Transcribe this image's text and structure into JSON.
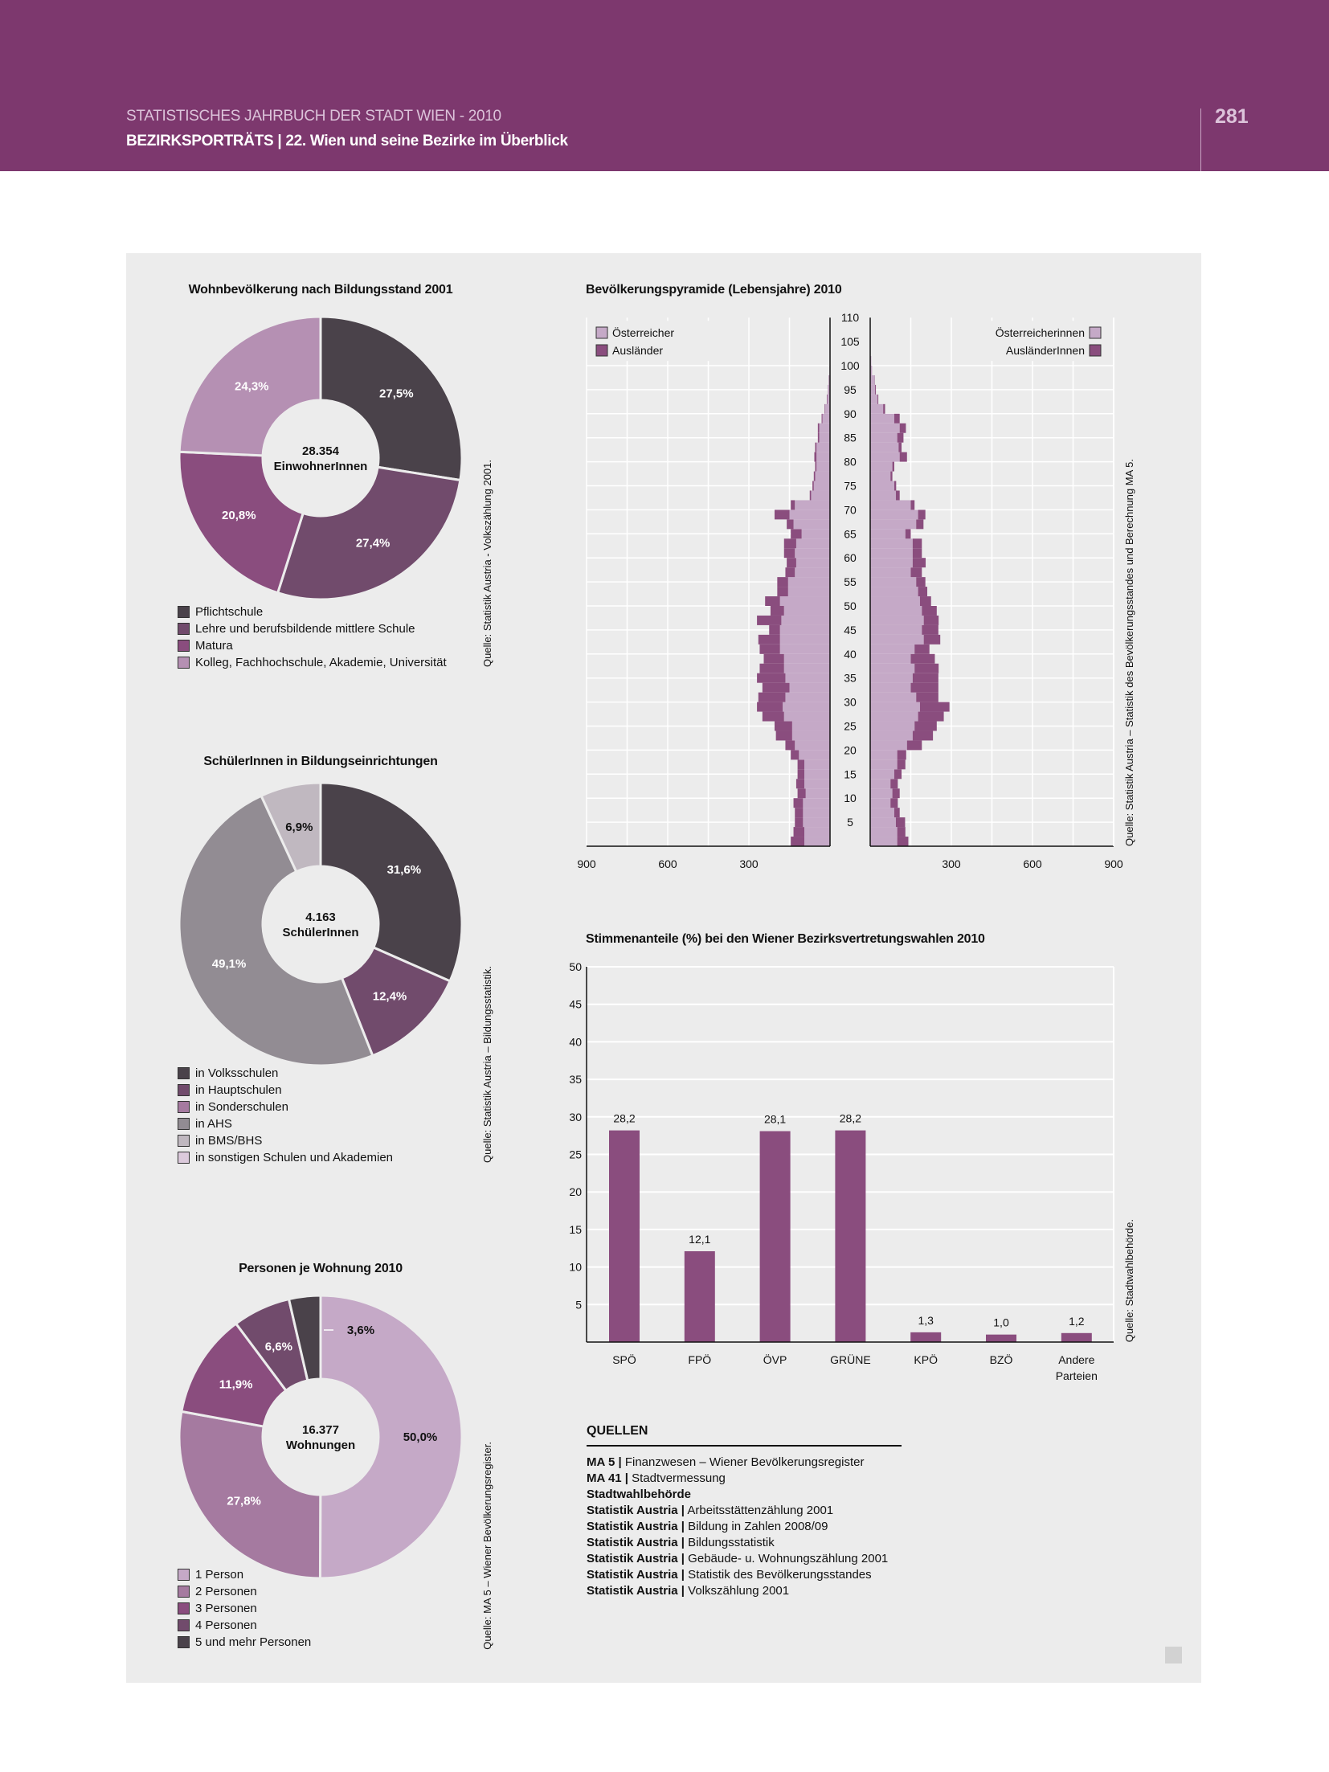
{
  "header": {
    "line1": "STATISTISCHES JAHRBUCH DER STADT WIEN - 2010",
    "line2": "BEZIRKSPORTRÄTS  |  22. Wien und seine Bezirke im Überblick",
    "page_number": "281",
    "color": "#7d386e"
  },
  "chart_data": [
    {
      "type": "pie",
      "title": "Wohnbevölkerung nach Bildungsstand 2001",
      "center_value": "28.354",
      "center_label": "EinwohnerInnen",
      "source": "Quelle: Statistik Austria - Volkszählung 2001.",
      "slices": [
        {
          "label": "Pflichtschule",
          "value": 27.5,
          "text": "27,5%",
          "color": "#4a424a",
          "text_color": "#ffffff"
        },
        {
          "label": "Lehre und berufsbildende mittlere Schule",
          "value": 27.4,
          "text": "27,4%",
          "color": "#714b6c",
          "text_color": "#ffffff"
        },
        {
          "label": "Matura",
          "value": 20.8,
          "text": "20,8%",
          "color": "#8a4d7e",
          "text_color": "#ffffff"
        },
        {
          "label": "Kolleg, Fachhochschule, Akademie, Universität",
          "value": 24.3,
          "text": "24,3%",
          "color": "#b590b3",
          "text_color": "#ffffff"
        }
      ]
    },
    {
      "type": "pie",
      "title": "SchülerInnen in Bildungseinrichtungen",
      "center_value": "4.163",
      "center_label": "SchülerInnen",
      "source": "Quelle: Statistik Austria – Bildungsstatistik.",
      "slices": [
        {
          "label": "in Volksschulen",
          "value": 31.6,
          "text": "31,6%",
          "color": "#4a424a",
          "text_color": "#ffffff"
        },
        {
          "label": "in Hauptschulen",
          "value": 12.4,
          "text": "12,4%",
          "color": "#714b6c",
          "text_color": "#ffffff"
        },
        {
          "label": "in Sonderschulen",
          "value": 0,
          "text": "",
          "color": "#a57aa0",
          "text_color": "#ffffff"
        },
        {
          "label": "in AHS",
          "value": 49.1,
          "text": "49,1%",
          "color": "#928c93",
          "text_color": "#ffffff"
        },
        {
          "label": "in BMS/BHS",
          "value": 6.9,
          "text": "6,9%",
          "color": "#c0b8c0",
          "text_color": "#111111"
        },
        {
          "label": "in sonstigen Schulen und Akademien",
          "value": 0,
          "text": "",
          "color": "#dccadc",
          "text_color": "#111111"
        }
      ]
    },
    {
      "type": "pie",
      "title": "Personen je Wohnung 2010",
      "center_value": "16.377",
      "center_label": "Wohnungen",
      "source": "Quelle: MA 5 – Wiener Bevölkerungsregister.",
      "slices": [
        {
          "label": "1 Person",
          "value": 50.0,
          "text": "50,0%",
          "color": "#c5a9c7",
          "text_color": "#111111"
        },
        {
          "label": "2 Personen",
          "value": 27.8,
          "text": "27,8%",
          "color": "#a57aa0",
          "text_color": "#ffffff"
        },
        {
          "label": "3 Personen",
          "value": 11.9,
          "text": "11,9%",
          "color": "#8a4d7e",
          "text_color": "#ffffff"
        },
        {
          "label": "4 Personen",
          "value": 6.6,
          "text": "6,6%",
          "color": "#714b6c",
          "text_color": "#ffffff"
        },
        {
          "label": "5 und mehr Personen",
          "value": 3.6,
          "text": "3,6%",
          "color": "#4a424a",
          "text_color": "#111111"
        }
      ]
    },
    {
      "type": "bar",
      "subtype": "population-pyramid",
      "title": "Bevölkerungspyramide (Lebensjahre) 2010",
      "source": "Quelle: Statistik Austria – Statistik des Bevölkerungsstandes und Berechnung MA 5.",
      "legend_left": [
        "Österreicher",
        "Ausländer"
      ],
      "legend_right": [
        "Österreicherinnen",
        "AusländerInnen"
      ],
      "colors": {
        "austrian": "#c5a9c7",
        "foreign": "#8a4d7e"
      },
      "age_ticks": [
        "5",
        "10",
        "15",
        "20",
        "25",
        "30",
        "35",
        "40",
        "45",
        "50",
        "55",
        "60",
        "65",
        "70",
        "75",
        "80",
        "85",
        "90",
        "95",
        "100",
        "105",
        "110"
      ],
      "x_ticks": [
        "900",
        "600",
        "300"
      ],
      "xlim": [
        0,
        900
      ],
      "ylim": [
        0,
        110
      ],
      "bin_years": 2,
      "ages": [
        0,
        2,
        4,
        6,
        8,
        10,
        12,
        14,
        16,
        18,
        20,
        22,
        24,
        26,
        28,
        30,
        32,
        34,
        36,
        38,
        40,
        42,
        44,
        46,
        48,
        50,
        52,
        54,
        56,
        58,
        60,
        62,
        64,
        66,
        68,
        70,
        72,
        74,
        76,
        78,
        80,
        82,
        84,
        86,
        88,
        90,
        92,
        94,
        96,
        98,
        100
      ],
      "male_austrian": [
        95,
        95,
        100,
        100,
        100,
        90,
        95,
        95,
        95,
        115,
        130,
        140,
        140,
        170,
        175,
        165,
        150,
        165,
        170,
        170,
        185,
        185,
        185,
        180,
        170,
        185,
        155,
        155,
        130,
        125,
        130,
        125,
        105,
        135,
        150,
        130,
        70,
        60,
        55,
        50,
        50,
        50,
        40,
        40,
        28,
        18,
        10,
        7,
        4,
        2,
        0
      ],
      "male_foreign": [
        50,
        40,
        30,
        30,
        35,
        30,
        30,
        25,
        25,
        30,
        35,
        60,
        65,
        80,
        95,
        100,
        100,
        105,
        90,
        75,
        75,
        80,
        40,
        90,
        50,
        55,
        40,
        40,
        35,
        35,
        40,
        45,
        40,
        25,
        55,
        15,
        5,
        5,
        5,
        5,
        8,
        5,
        5,
        5,
        3,
        2,
        2,
        1,
        1,
        0,
        0
      ],
      "female_austrian": [
        100,
        100,
        95,
        89,
        75,
        82,
        75,
        89,
        100,
        100,
        136,
        157,
        164,
        177,
        184,
        170,
        150,
        157,
        164,
        150,
        164,
        198,
        191,
        198,
        191,
        184,
        177,
        170,
        150,
        157,
        157,
        157,
        130,
        170,
        177,
        150,
        95,
        89,
        75,
        82,
        109,
        105,
        100,
        109,
        89,
        48,
        27,
        18,
        16,
        7,
        4
      ],
      "female_foreign": [
        41,
        30,
        34,
        20,
        27,
        27,
        27,
        27,
        30,
        33,
        55,
        75,
        82,
        95,
        109,
        82,
        102,
        95,
        89,
        89,
        55,
        61,
        61,
        55,
        55,
        41,
        34,
        34,
        41,
        48,
        34,
        34,
        20,
        27,
        27,
        14,
        14,
        7,
        7,
        7,
        27,
        11,
        23,
        23,
        20,
        7,
        3,
        3,
        1,
        0,
        0
      ]
    },
    {
      "type": "bar",
      "title": "Stimmenanteile (%) bei den Wiener Bezirksvertretungswahlen 2010",
      "source": "Quelle: Stadtwahlbehörde.",
      "categories": [
        "SPÖ",
        "FPÖ",
        "ÖVP",
        "GRÜNE",
        "KPÖ",
        "BZÖ",
        "Andere Parteien"
      ],
      "category_lines": [
        [
          "SPÖ"
        ],
        [
          "FPÖ"
        ],
        [
          "ÖVP"
        ],
        [
          "GRÜNE"
        ],
        [
          "KPÖ"
        ],
        [
          "BZÖ"
        ],
        [
          "Andere",
          "Parteien"
        ]
      ],
      "values": [
        28.2,
        12.1,
        28.1,
        28.2,
        1.3,
        1.0,
        1.2
      ],
      "value_labels": [
        "28,2",
        "12,1",
        "28,1",
        "28,2",
        "1,3",
        "1,0",
        "1,2"
      ],
      "y_ticks": [
        "5",
        "10",
        "15",
        "20",
        "25",
        "30",
        "35",
        "40",
        "45",
        "50"
      ],
      "ylim": [
        0,
        50
      ],
      "xlabel": "",
      "ylabel": "",
      "bar_color": "#8a4d7e",
      "grid": true
    }
  ],
  "sources": {
    "title": "QUELLEN",
    "items": [
      {
        "org": "MA 5 |",
        "text": " Finanzwesen – Wiener Bevölkerungsregister"
      },
      {
        "org": "MA 41 |",
        "text": " Stadtvermessung"
      },
      {
        "org": "Stadtwahlbehörde",
        "text": ""
      },
      {
        "org": "Statistik Austria |",
        "text": " Arbeitsstättenzählung 2001"
      },
      {
        "org": "Statistik Austria |",
        "text": " Bildung in Zahlen 2008/09"
      },
      {
        "org": "Statistik Austria |",
        "text": " Bildungsstatistik"
      },
      {
        "org": "Statistik Austria |",
        "text": " Gebäude- u. Wohnungszählung 2001"
      },
      {
        "org": "Statistik Austria |",
        "text": " Statistik des Bevölkerungsstandes"
      },
      {
        "org": "Statistik Austria |",
        "text": " Volkszählung 2001"
      }
    ]
  }
}
